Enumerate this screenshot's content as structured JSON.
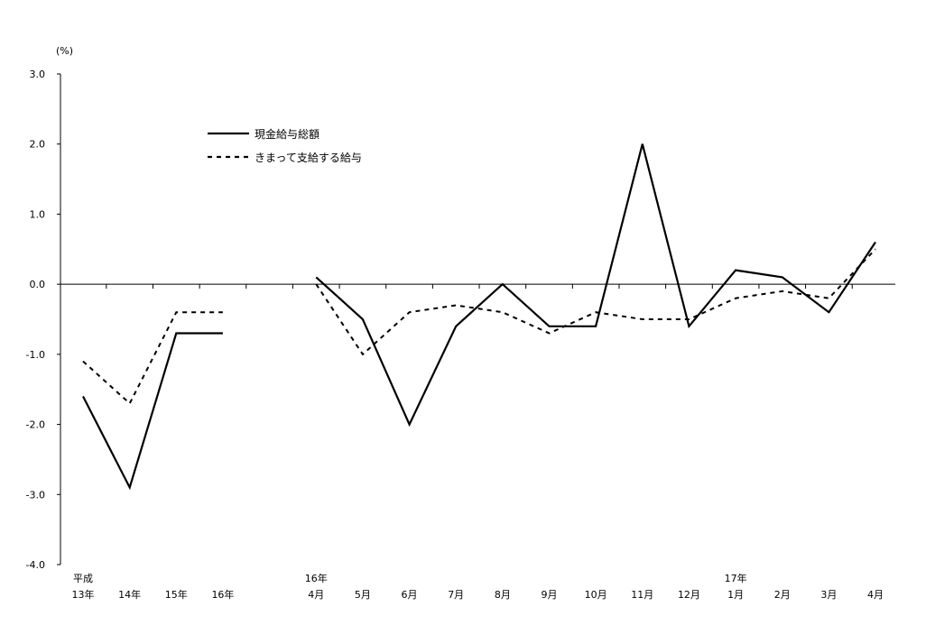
{
  "chart_data": {
    "type": "line",
    "y_unit": "(%)",
    "ylim": [
      -4.0,
      3.0
    ],
    "yticks": [
      3.0,
      2.0,
      1.0,
      0.0,
      -1.0,
      -2.0,
      -3.0,
      -4.0
    ],
    "ytick_labels": [
      "3.0",
      "2.0",
      "1.0",
      "0.0",
      "-1.0",
      "-2.0",
      "-3.0",
      "-4.0"
    ],
    "grid": false,
    "legend_position": "top-left",
    "categories": [
      {
        "top": "平成",
        "bottom": "13年"
      },
      {
        "top": "",
        "bottom": "14年"
      },
      {
        "top": "",
        "bottom": "15年"
      },
      {
        "top": "",
        "bottom": "16年"
      },
      {
        "top": "",
        "bottom": ""
      },
      {
        "top": "16年",
        "bottom": "4月"
      },
      {
        "top": "",
        "bottom": "5月"
      },
      {
        "top": "",
        "bottom": "6月"
      },
      {
        "top": "",
        "bottom": "7月"
      },
      {
        "top": "",
        "bottom": "8月"
      },
      {
        "top": "",
        "bottom": "9月"
      },
      {
        "top": "",
        "bottom": "10月"
      },
      {
        "top": "",
        "bottom": "11月"
      },
      {
        "top": "",
        "bottom": "12月"
      },
      {
        "top": "17年",
        "bottom": "1月"
      },
      {
        "top": "",
        "bottom": "2月"
      },
      {
        "top": "",
        "bottom": "3月"
      },
      {
        "top": "",
        "bottom": "4月"
      }
    ],
    "series": [
      {
        "name": "現金給与総額",
        "style": "solid",
        "color": "#000000",
        "values": [
          -1.6,
          -2.9,
          -0.7,
          -0.7,
          null,
          0.1,
          -0.5,
          -2.0,
          -0.6,
          0.0,
          -0.6,
          -0.6,
          2.0,
          -0.6,
          0.2,
          0.1,
          -0.4,
          0.6
        ]
      },
      {
        "name": "きまって支給する給与",
        "style": "dashed",
        "color": "#000000",
        "values": [
          -1.1,
          -1.7,
          -0.4,
          -0.4,
          null,
          0.0,
          -1.0,
          -0.4,
          -0.3,
          -0.4,
          -0.7,
          -0.4,
          -0.5,
          -0.5,
          -0.2,
          -0.1,
          -0.2,
          0.5
        ]
      }
    ]
  }
}
